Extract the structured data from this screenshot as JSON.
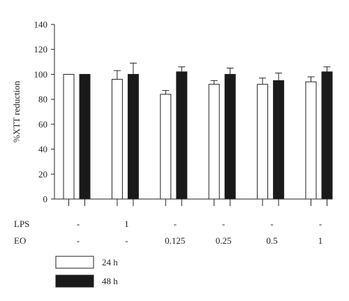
{
  "chart_data": {
    "type": "bar",
    "ylabel": "%XTT reduction",
    "ylim": [
      0,
      140
    ],
    "yticks": [
      0,
      20,
      40,
      60,
      80,
      100,
      120,
      140
    ],
    "grid": false,
    "condition_rows": [
      {
        "label": "LPS",
        "values": [
          "-",
          "1",
          "-",
          "-",
          "-",
          "-"
        ]
      },
      {
        "label": "EO",
        "values": [
          "-",
          "-",
          "0.125",
          "0.25",
          "0.5",
          "1"
        ]
      }
    ],
    "series": [
      {
        "name": "24 h",
        "color": "#ffffff",
        "values": [
          100,
          96,
          84,
          92,
          92,
          94
        ],
        "errors": [
          0,
          7,
          3,
          3,
          5,
          4
        ]
      },
      {
        "name": "48 h",
        "color": "#1a1a1a",
        "values": [
          100,
          100,
          102,
          100,
          95,
          102
        ],
        "errors": [
          0,
          9,
          4,
          5,
          6,
          4
        ]
      }
    ],
    "legend_position": "bottom-left"
  }
}
